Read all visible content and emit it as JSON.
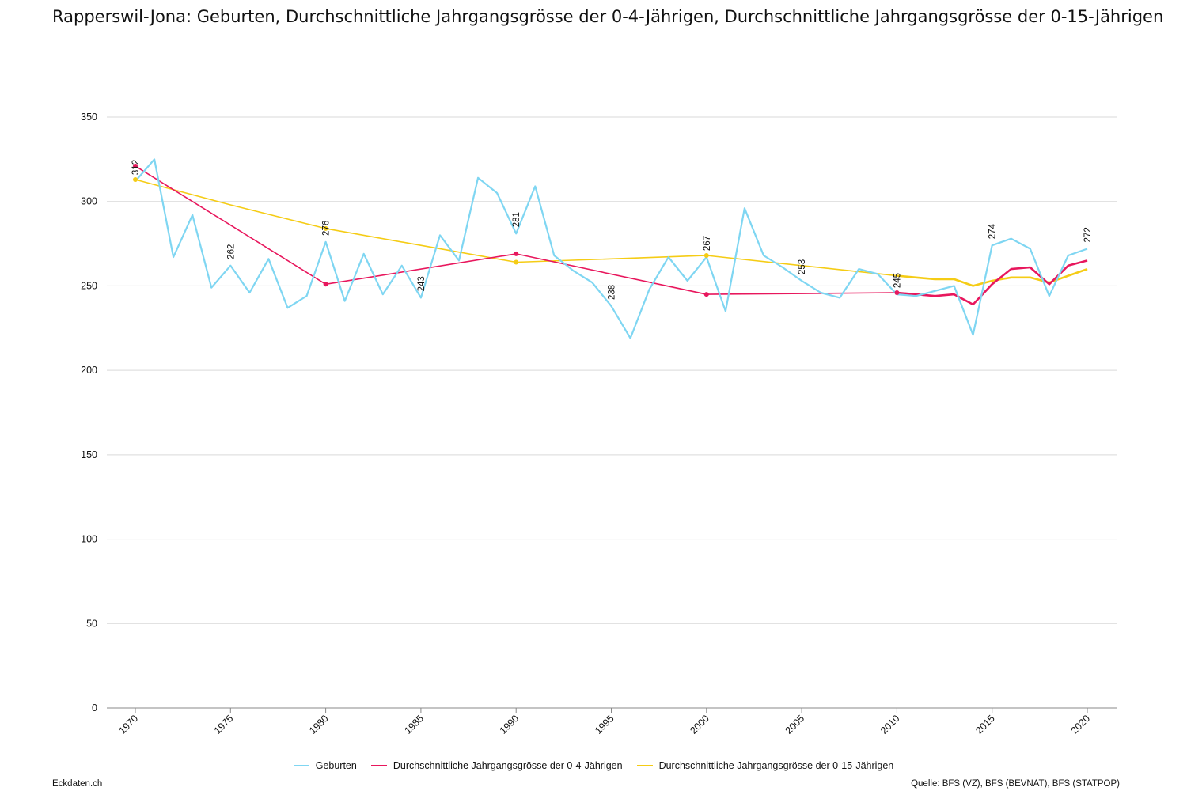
{
  "title": "Rapperswil-Jona: Geburten, Durchschnittliche Jahrgangsgrösse der 0-4-Jährigen, Durchschnittliche Jahrgangsgrösse der 0-15-Jährigen",
  "footer": {
    "left": "Eckdaten.ch",
    "right": "Quelle: BFS (VZ), BFS (BEVNAT), BFS (STATPOP)"
  },
  "colors": {
    "geburten": "#7fd6f2",
    "avg_0_4": "#e8175d",
    "avg_0_15": "#f5cc15",
    "grid": "#d9d9d9",
    "axis": "#888888"
  },
  "chart_data": {
    "type": "line",
    "title": "Rapperswil-Jona: Geburten, Durchschnittliche Jahrgangsgrösse der 0-4-Jährigen, Durchschnittliche Jahrgangsgrösse der 0-15-Jährigen",
    "xlim": [
      1970,
      2020
    ],
    "ylim": [
      0,
      350
    ],
    "y_ticks": [
      0,
      50,
      100,
      150,
      200,
      250,
      300,
      350
    ],
    "x_ticks": [
      1970,
      1975,
      1980,
      1985,
      1990,
      1995,
      2000,
      2005,
      2010,
      2015,
      2020
    ],
    "grid": true,
    "legend_position": "bottom",
    "series": [
      {
        "name": "Geburten",
        "color": "#7fd6f2",
        "points": [
          [
            1970,
            312
          ],
          [
            1971,
            325
          ],
          [
            1972,
            267
          ],
          [
            1973,
            292
          ],
          [
            1974,
            249
          ],
          [
            1975,
            262
          ],
          [
            1976,
            246
          ],
          [
            1977,
            266
          ],
          [
            1978,
            237
          ],
          [
            1979,
            244
          ],
          [
            1980,
            276
          ],
          [
            1981,
            241
          ],
          [
            1982,
            269
          ],
          [
            1983,
            245
          ],
          [
            1984,
            262
          ],
          [
            1985,
            243
          ],
          [
            1986,
            280
          ],
          [
            1987,
            265
          ],
          [
            1988,
            314
          ],
          [
            1989,
            305
          ],
          [
            1990,
            281
          ],
          [
            1991,
            309
          ],
          [
            1992,
            268
          ],
          [
            1993,
            259
          ],
          [
            1994,
            252
          ],
          [
            1995,
            238
          ],
          [
            1996,
            219
          ],
          [
            1997,
            248
          ],
          [
            1998,
            267
          ],
          [
            1999,
            253
          ],
          [
            2000,
            267
          ],
          [
            2001,
            235
          ],
          [
            2002,
            296
          ],
          [
            2003,
            268
          ],
          [
            2004,
            261
          ],
          [
            2005,
            253
          ],
          [
            2006,
            246
          ],
          [
            2007,
            243
          ],
          [
            2008,
            260
          ],
          [
            2009,
            257
          ],
          [
            2010,
            245
          ],
          [
            2011,
            244
          ],
          [
            2012,
            247
          ],
          [
            2013,
            250
          ],
          [
            2014,
            221
          ],
          [
            2015,
            274
          ],
          [
            2016,
            278
          ],
          [
            2017,
            272
          ],
          [
            2018,
            244
          ],
          [
            2019,
            268
          ],
          [
            2020,
            272
          ]
        ],
        "labels": [
          {
            "x": 1970,
            "text": "312"
          },
          {
            "x": 1975,
            "text": "262"
          },
          {
            "x": 1980,
            "text": "276"
          },
          {
            "x": 1985,
            "text": "243"
          },
          {
            "x": 1990,
            "text": "281"
          },
          {
            "x": 1995,
            "text": "238"
          },
          {
            "x": 2000,
            "text": "267"
          },
          {
            "x": 2005,
            "text": "253"
          },
          {
            "x": 2010,
            "text": "245"
          },
          {
            "x": 2015,
            "text": "274"
          },
          {
            "x": 2020,
            "text": "272"
          }
        ]
      },
      {
        "name": "Durchschnittliche Jahrgangsgrösse der 0-4-Jährigen",
        "color": "#e8175d",
        "points": [
          [
            1970,
            321
          ],
          [
            1980,
            251
          ],
          [
            1990,
            269
          ],
          [
            2000,
            245
          ],
          [
            2010,
            246
          ],
          [
            2011,
            245
          ],
          [
            2012,
            244
          ],
          [
            2013,
            245
          ],
          [
            2014,
            239
          ],
          [
            2015,
            251
          ],
          [
            2016,
            260
          ],
          [
            2017,
            261
          ],
          [
            2018,
            251
          ],
          [
            2019,
            262
          ],
          [
            2020,
            265
          ]
        ],
        "markers": [
          1970,
          1980,
          1990,
          2000,
          2010
        ]
      },
      {
        "name": "Durchschnittliche Jahrgangsgrösse der 0-15-Jährigen",
        "color": "#f5cc15",
        "points": [
          [
            1970,
            313
          ],
          [
            1975,
            298
          ],
          [
            1980,
            284
          ],
          [
            1985,
            274
          ],
          [
            1990,
            264
          ],
          [
            1995,
            266
          ],
          [
            2000,
            268
          ],
          [
            2005,
            262
          ],
          [
            2010,
            256
          ],
          [
            2011,
            255
          ],
          [
            2012,
            254
          ],
          [
            2013,
            254
          ],
          [
            2014,
            250
          ],
          [
            2015,
            253
          ],
          [
            2016,
            255
          ],
          [
            2017,
            255
          ],
          [
            2018,
            252
          ],
          [
            2019,
            256
          ],
          [
            2020,
            260
          ]
        ],
        "markers": [
          1970,
          1980,
          1990,
          2000
        ]
      }
    ]
  }
}
